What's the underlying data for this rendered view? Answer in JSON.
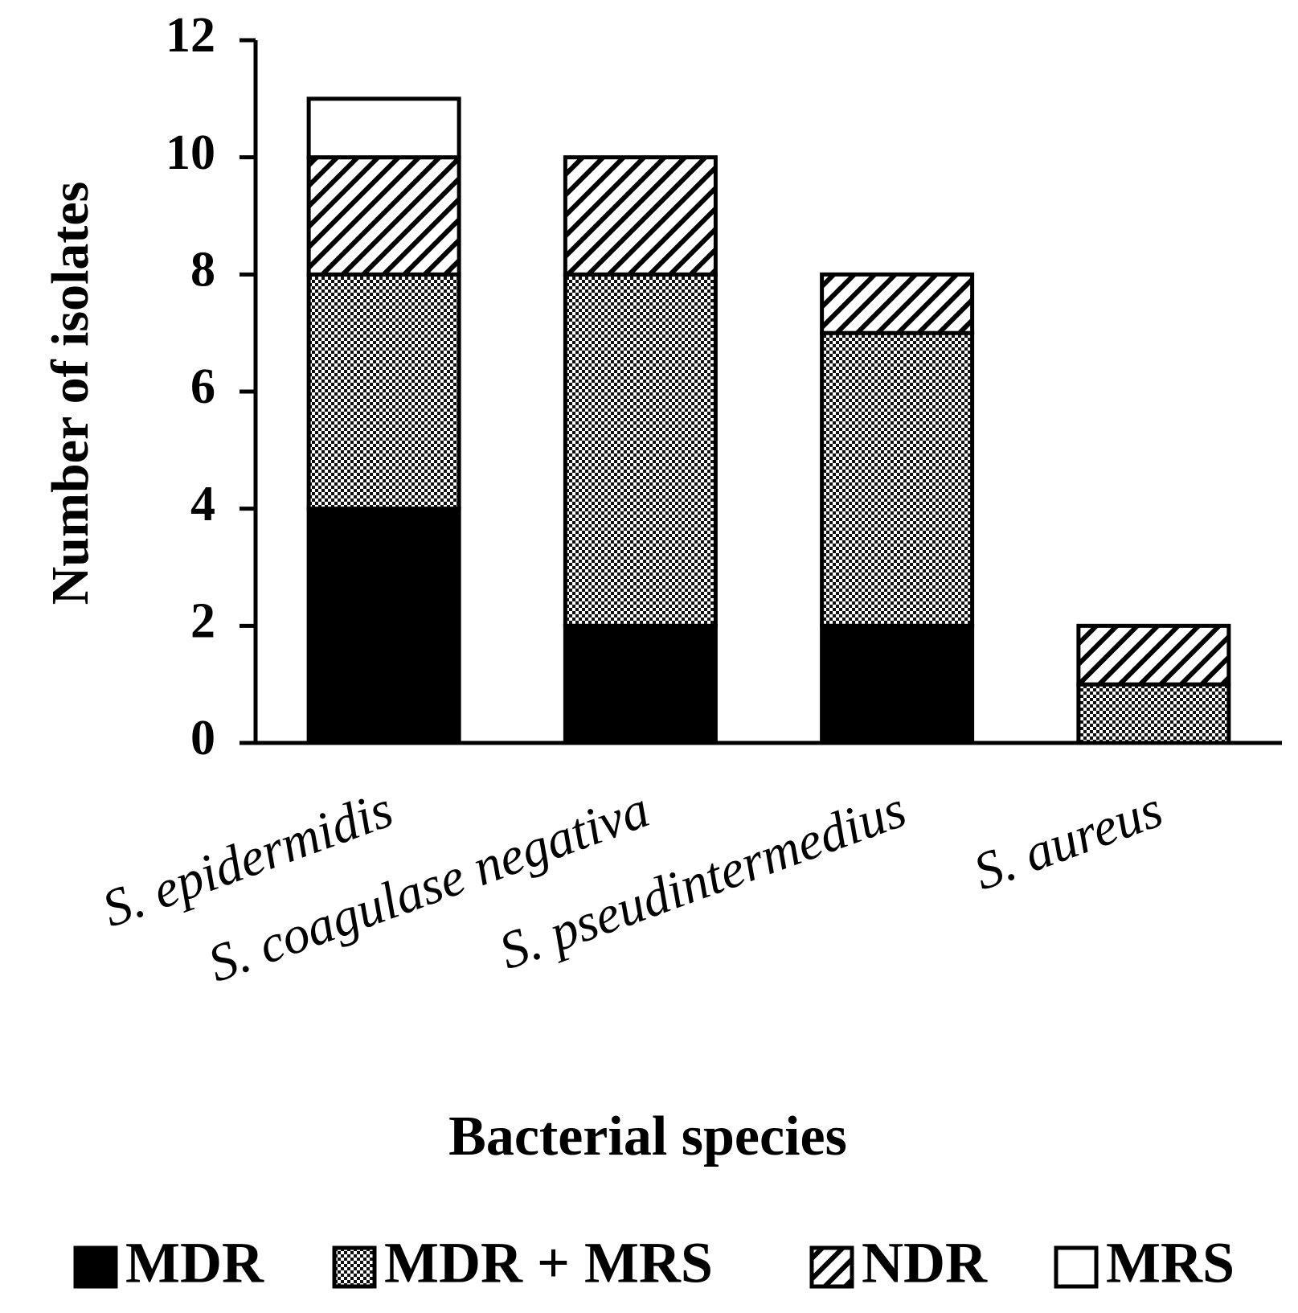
{
  "chart_data": {
    "type": "stacked_bar",
    "categories": [
      "S. epidermidis",
      "S. coagulase negativa",
      "S. pseudintermedius",
      "S. aureus"
    ],
    "series": [
      {
        "name": "MDR",
        "color": "#000000",
        "pattern": "solid",
        "values": [
          4,
          2,
          2,
          0
        ]
      },
      {
        "name": "MDR + MRS",
        "color": "#000000",
        "pattern": "checker",
        "values": [
          4,
          6,
          5,
          1
        ]
      },
      {
        "name": "NDR",
        "color": "#000000",
        "pattern": "diagonal",
        "values": [
          2,
          2,
          1,
          1
        ]
      },
      {
        "name": "MRS",
        "color": "#000000",
        "pattern": "empty",
        "values": [
          1,
          0,
          0,
          0
        ]
      }
    ],
    "x_label": "Bacterial species",
    "y_label": "Number of isolates",
    "ylim": [
      0,
      12
    ],
    "yticks": [
      0,
      2,
      4,
      6,
      8,
      10,
      12
    ],
    "grid": false,
    "legend": "bottom"
  }
}
